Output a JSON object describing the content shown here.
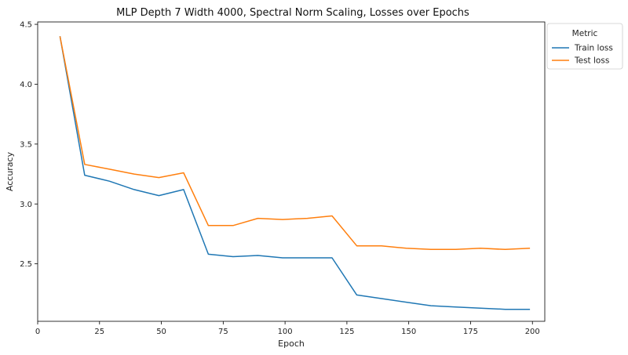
{
  "chart_data": {
    "type": "line",
    "title": "MLP Depth 7 Width 4000, Spectral Norm Scaling, Losses over Epochs",
    "xlabel": "Epoch",
    "ylabel": "Accuracy",
    "xlim": [
      0,
      205
    ],
    "ylim": [
      2.02,
      4.52
    ],
    "xticks": [
      0,
      25,
      50,
      75,
      100,
      125,
      150,
      175,
      200
    ],
    "yticks": [
      2.5,
      3.0,
      3.5,
      4.0,
      4.5
    ],
    "xtick_labels": [
      "0",
      "25",
      "50",
      "75",
      "100",
      "125",
      "150",
      "175",
      "200"
    ],
    "ytick_labels": [
      "2.5",
      "3.0",
      "3.5",
      "4.0",
      "4.5"
    ],
    "grid": false,
    "legend": {
      "title": "Metric",
      "placement": "outside-top-right"
    },
    "x": [
      9,
      19,
      29,
      39,
      49,
      59,
      69,
      79,
      89,
      99,
      109,
      119,
      129,
      139,
      149,
      159,
      169,
      179,
      189,
      199
    ],
    "series": [
      {
        "name": "Train loss",
        "color": "#1f77b4",
        "values": [
          4.4,
          3.24,
          3.19,
          3.12,
          3.07,
          3.12,
          2.58,
          2.56,
          2.57,
          2.55,
          2.55,
          2.55,
          2.24,
          2.21,
          2.18,
          2.15,
          2.14,
          2.13,
          2.12,
          2.12
        ]
      },
      {
        "name": "Test loss",
        "color": "#ff7f0e",
        "values": [
          4.4,
          3.33,
          3.29,
          3.25,
          3.22,
          3.26,
          2.82,
          2.82,
          2.88,
          2.87,
          2.88,
          2.9,
          2.65,
          2.65,
          2.63,
          2.62,
          2.62,
          2.63,
          2.62,
          2.63
        ]
      }
    ]
  }
}
